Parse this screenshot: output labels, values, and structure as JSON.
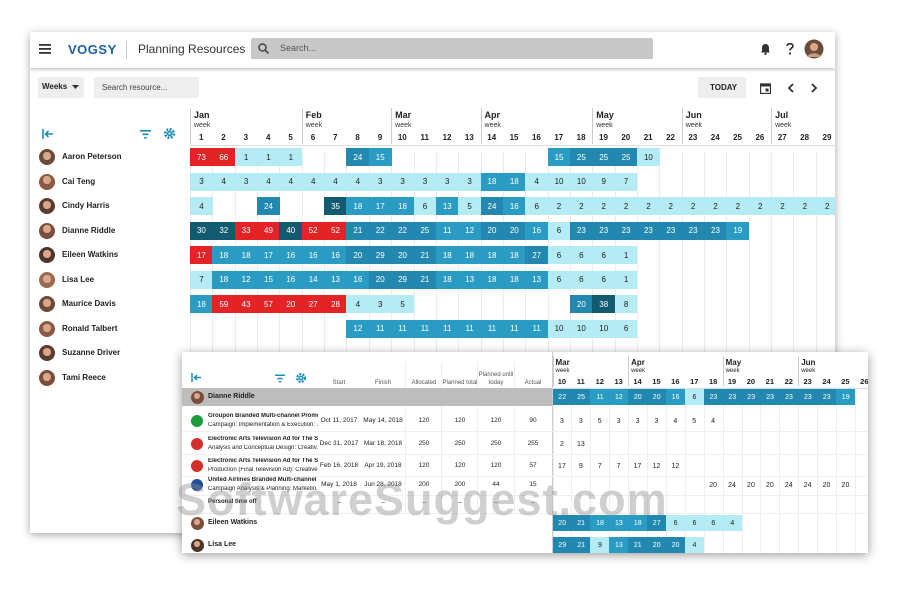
{
  "app": {
    "logo": "VOGSY",
    "title": "Planning Resources",
    "search_placeholder": "Search...",
    "view": "Weeks",
    "resource_search": "Search resource...",
    "today": "TODAY"
  },
  "planner": {
    "week_label": "week",
    "week_months": [
      "Jan",
      null,
      null,
      null,
      null,
      "Feb",
      null,
      null,
      null,
      "Mar",
      null,
      null,
      null,
      "Apr",
      null,
      null,
      null,
      null,
      "May",
      null,
      null,
      null,
      "Jun",
      null,
      null,
      null,
      "Jul",
      null,
      null
    ],
    "weeks": [
      1,
      2,
      3,
      4,
      5,
      6,
      7,
      8,
      9,
      10,
      11,
      12,
      13,
      14,
      15,
      16,
      17,
      18,
      19,
      20,
      21,
      22,
      23,
      24,
      25,
      26,
      27,
      28,
      29
    ],
    "people": [
      {
        "name": "Aaron Peterson",
        "values": [
          73,
          66,
          1,
          1,
          1,
          null,
          null,
          24,
          15,
          null,
          null,
          null,
          null,
          null,
          null,
          null,
          15,
          25,
          25,
          25,
          10,
          null,
          null,
          null,
          null,
          null,
          null,
          null,
          null
        ],
        "over": [
          0,
          1
        ]
      },
      {
        "name": "Cai Teng",
        "values": [
          3,
          4,
          3,
          4,
          4,
          4,
          4,
          4,
          3,
          3,
          3,
          3,
          3,
          18,
          18,
          4,
          10,
          10,
          9,
          7,
          null,
          null,
          null,
          null,
          null,
          null,
          null,
          null,
          null
        ],
        "over": []
      },
      {
        "name": "Cindy Harris",
        "values": [
          4,
          null,
          null,
          24,
          null,
          null,
          35,
          18,
          17,
          18,
          6,
          13,
          5,
          24,
          16,
          6,
          2,
          2,
          2,
          2,
          2,
          2,
          2,
          2,
          2,
          2,
          2,
          2,
          2
        ],
        "over": []
      },
      {
        "name": "Dianne Riddle",
        "values": [
          30,
          32,
          33,
          49,
          40,
          52,
          52,
          21,
          22,
          22,
          25,
          11,
          12,
          20,
          20,
          16,
          6,
          23,
          23,
          23,
          23,
          23,
          23,
          23,
          19,
          null,
          null,
          null,
          null
        ],
        "over": [
          2,
          3,
          5,
          6
        ]
      },
      {
        "name": "Eileen Watkins",
        "values": [
          17,
          18,
          18,
          17,
          16,
          16,
          16,
          20,
          29,
          20,
          21,
          18,
          18,
          18,
          18,
          27,
          6,
          6,
          6,
          1,
          null,
          null,
          null,
          null,
          null,
          null,
          null,
          null,
          null
        ],
        "over": [
          0
        ]
      },
      {
        "name": "Lisa Lee",
        "values": [
          7,
          18,
          12,
          15,
          16,
          14,
          13,
          16,
          20,
          29,
          21,
          18,
          13,
          18,
          18,
          13,
          6,
          6,
          6,
          1,
          null,
          null,
          null,
          null,
          null,
          null,
          null,
          null,
          null
        ],
        "over": []
      },
      {
        "name": "Maurice Davis",
        "values": [
          18,
          59,
          43,
          57,
          20,
          27,
          28,
          4,
          3,
          5,
          null,
          null,
          null,
          null,
          null,
          null,
          null,
          20,
          38,
          8,
          null,
          null,
          null,
          null,
          null,
          null,
          null,
          null,
          null
        ],
        "over": [
          1,
          2,
          3,
          4,
          5,
          6
        ]
      },
      {
        "name": "Ronald Talbert",
        "values": [
          null,
          null,
          null,
          null,
          null,
          null,
          null,
          12,
          11,
          11,
          11,
          11,
          11,
          11,
          11,
          11,
          10,
          10,
          10,
          6,
          null,
          null,
          null,
          null,
          null,
          null,
          null,
          null,
          null
        ],
        "over": []
      },
      {
        "name": "Suzanne Driver"
      },
      {
        "name": "Tami Reece"
      }
    ]
  },
  "detail": {
    "columns": [
      "Start",
      "Finish",
      "Allocated",
      "Planned total",
      "Planned until today",
      "Actual"
    ],
    "week_months": [
      "Mar",
      null,
      null,
      null,
      "Apr",
      null,
      null,
      null,
      null,
      "May",
      null,
      null,
      null,
      "Jun",
      null,
      null,
      null
    ],
    "weeks": [
      10,
      11,
      12,
      13,
      14,
      15,
      16,
      17,
      18,
      19,
      20,
      21,
      22,
      23,
      24,
      25,
      26
    ],
    "rows": [
      {
        "kind": "person",
        "name": "Dianne Riddle",
        "values": [
          22,
          25,
          11,
          12,
          20,
          20,
          16,
          6,
          23,
          23,
          23,
          23,
          23,
          23,
          23,
          19,
          null
        ]
      },
      {
        "kind": "task",
        "client": "Groupon Branded Multi-channel Promoti...",
        "task": "Campaign: Implementation & Execution: ...",
        "cells": [
          "Oct 11, 2017",
          "May 14, 2018",
          120,
          120,
          120,
          90
        ],
        "values": [
          3,
          3,
          5,
          3,
          3,
          3,
          4,
          5,
          4,
          null,
          null,
          null,
          null,
          null,
          null,
          null,
          null
        ]
      },
      {
        "kind": "task",
        "client": "Electronic Arts Television Ad for The Sim...",
        "task": "Analysis and Conceptual Design: Creativ...",
        "cells": [
          "Dec 31, 2017",
          "Mar 18, 2018",
          250,
          250,
          250,
          255
        ],
        "values": [
          2,
          13,
          null,
          null,
          null,
          null,
          null,
          null,
          null,
          null,
          null,
          null,
          null,
          null,
          null,
          null,
          null
        ]
      },
      {
        "kind": "task",
        "client": "Electronic Arts Television Ad for The Sim...",
        "task": "Production (Final Television Ad): Creative...",
        "cells": [
          "Feb 16, 2018",
          "Apr 19, 2018",
          120,
          120,
          120,
          57
        ],
        "values": [
          17,
          9,
          7,
          7,
          17,
          12,
          12,
          null,
          null,
          null,
          null,
          null,
          null,
          null,
          null,
          null,
          null
        ]
      },
      {
        "kind": "task",
        "client": "United Airlines Branded Multi-channel Pr...",
        "task": "Campaign Analysis & Planning: Marketin...",
        "cells": [
          "May 1, 2018",
          "Jun 28, 2018",
          200,
          200,
          44,
          15
        ],
        "values": [
          null,
          null,
          null,
          null,
          null,
          null,
          null,
          null,
          20,
          24,
          20,
          20,
          24,
          24,
          20,
          20,
          null
        ]
      },
      {
        "kind": "task",
        "client": "Personal time off",
        "cells": [
          "–",
          "–",
          "–",
          "–",
          "–",
          "–"
        ]
      },
      {
        "kind": "person",
        "name": "Eileen Watkins",
        "values": [
          20,
          21,
          18,
          13,
          18,
          27,
          6,
          6,
          6,
          4,
          null,
          null,
          null,
          null,
          null,
          null,
          null
        ]
      },
      {
        "kind": "person",
        "name": "Lisa Lee",
        "values": [
          29,
          21,
          9,
          13,
          21,
          20,
          20,
          4,
          null,
          null,
          null,
          null,
          null,
          null,
          null,
          null,
          null
        ]
      }
    ]
  },
  "watermark": "SoftwareSuggest.com"
}
